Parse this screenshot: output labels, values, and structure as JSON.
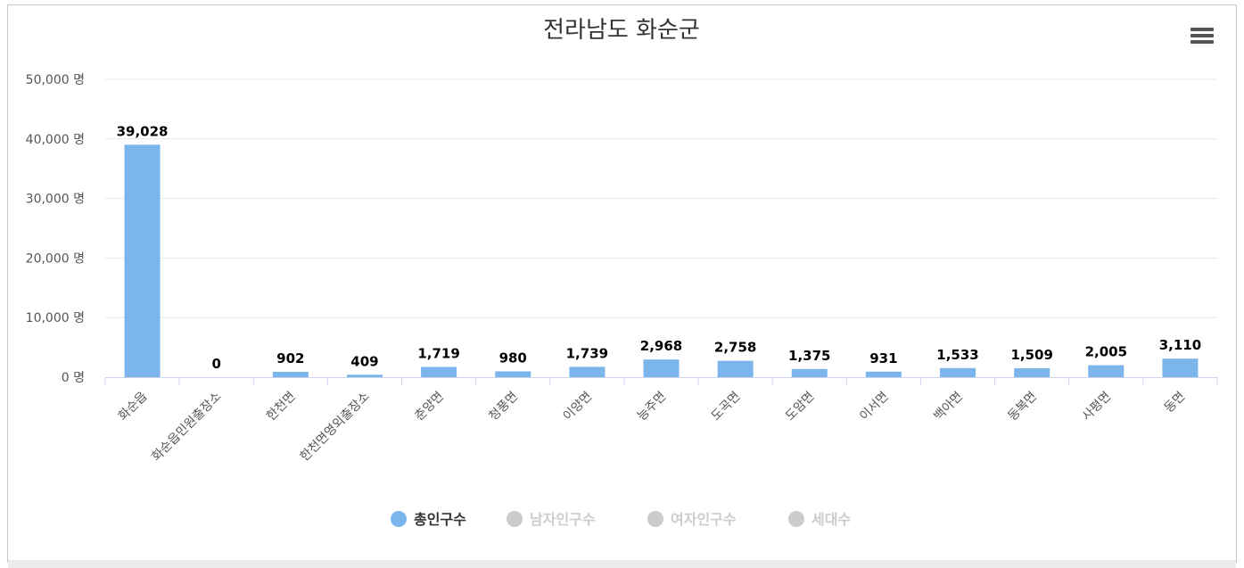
{
  "chart_data": {
    "type": "bar",
    "title": "전라남도 화순군",
    "categories": [
      "화순읍",
      "화순읍민원출장소",
      "한천면",
      "한천면영외출장소",
      "춘양면",
      "청풍면",
      "이양면",
      "능주면",
      "도곡면",
      "도암면",
      "이서면",
      "백아면",
      "동복면",
      "사평면",
      "동면"
    ],
    "series": [
      {
        "name": "총인구수",
        "values": [
          39028,
          0,
          902,
          409,
          1719,
          980,
          1739,
          2968,
          2758,
          1375,
          931,
          1533,
          1509,
          2005,
          3110
        ],
        "color": "#7cb5ec",
        "active": true
      }
    ],
    "data_labels": [
      "39,028",
      "0",
      "902",
      "409",
      "1,719",
      "980",
      "1,739",
      "2,968",
      "2,758",
      "1,375",
      "931",
      "1,533",
      "1,509",
      "2,005",
      "3,110"
    ],
    "yticks": [
      "0 명",
      "10,000 명",
      "20,000 명",
      "30,000 명",
      "40,000 명",
      "50,000 명"
    ],
    "ylim": [
      0,
      50000
    ],
    "grid": true,
    "legend": {
      "placement": "bottom",
      "items": [
        {
          "label": "총인구수",
          "color": "#7cb5ec",
          "active": true
        },
        {
          "label": "남자인구수",
          "color": "#cccccc",
          "active": false
        },
        {
          "label": "여자인구수",
          "color": "#cccccc",
          "active": false
        },
        {
          "label": "세대수",
          "color": "#cccccc",
          "active": false
        }
      ]
    }
  },
  "ui": {
    "menu_icon": "hamburger-menu-icon"
  }
}
